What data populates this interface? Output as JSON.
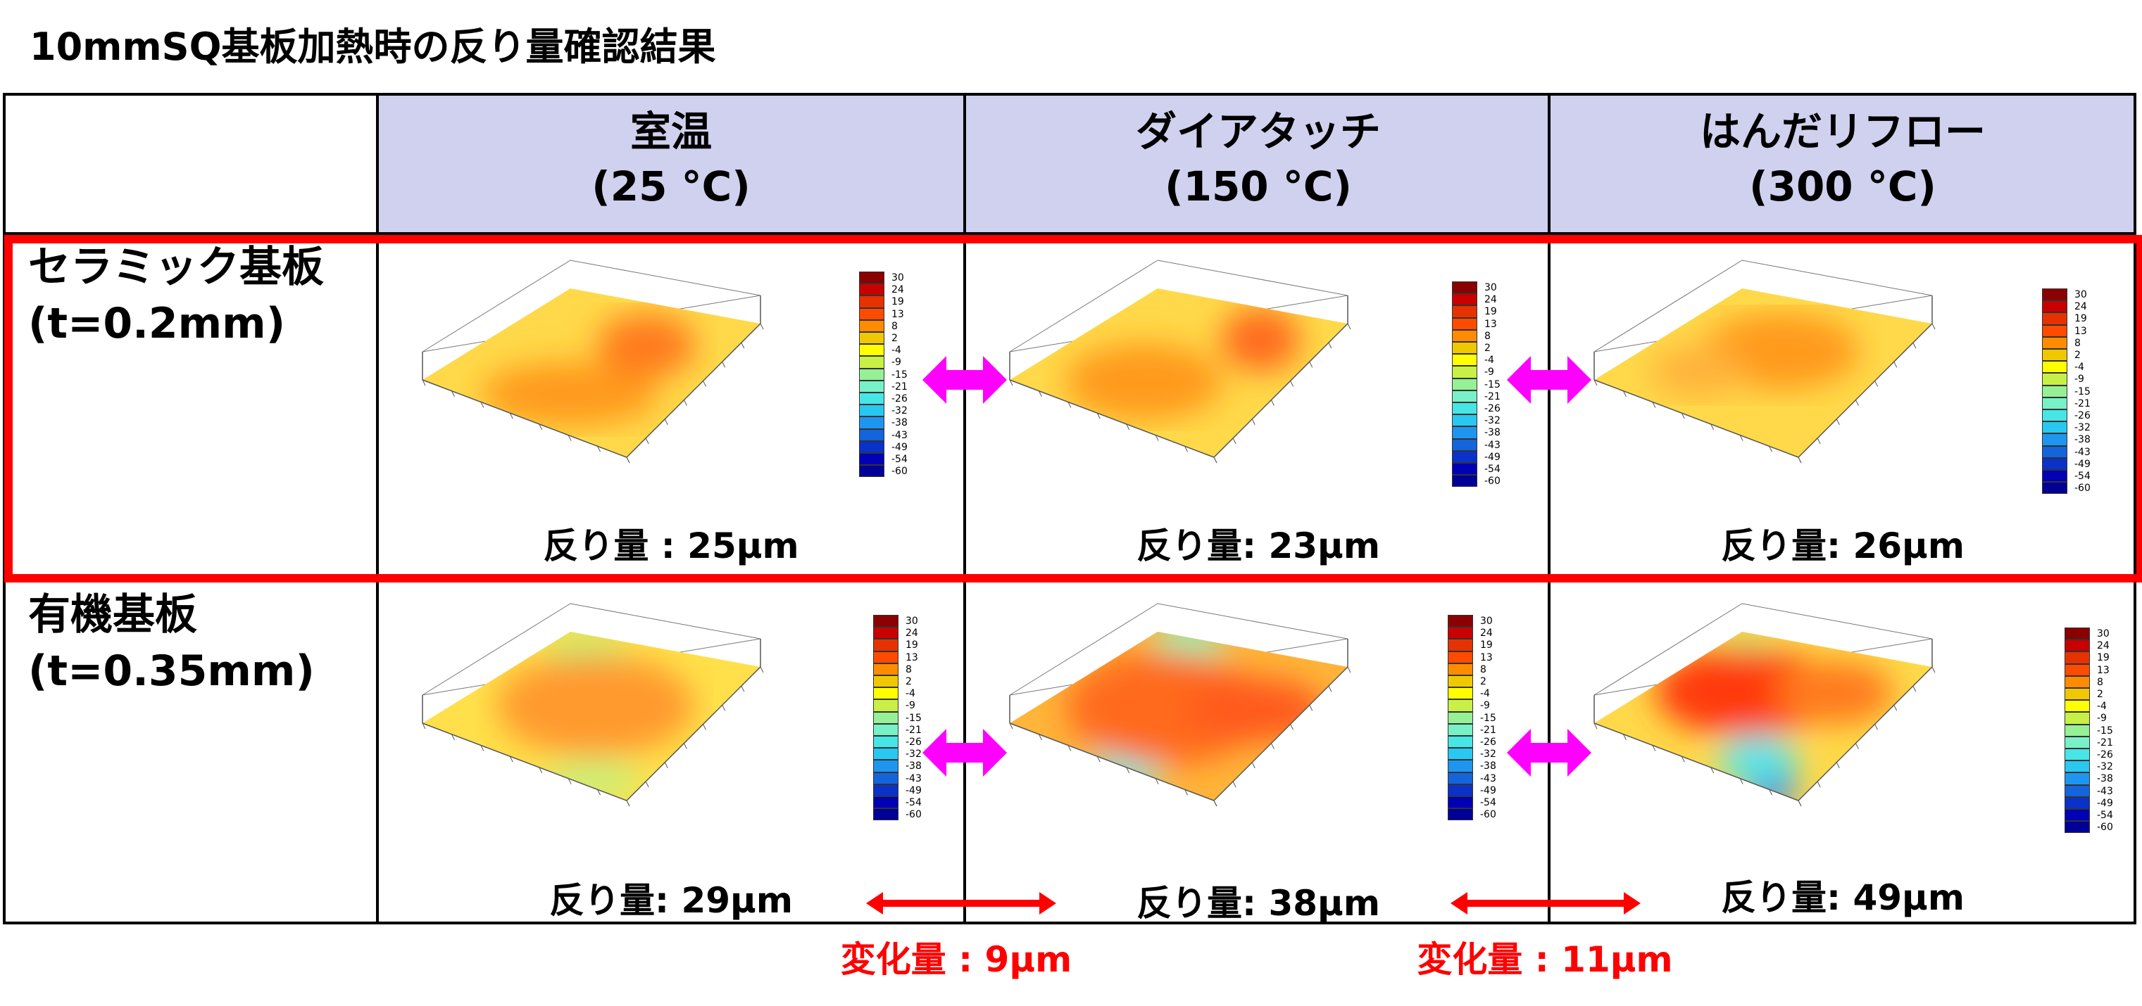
{
  "title": "10mmSQ基板加熱時の反り量確認結果",
  "columns": [
    {
      "name": "室温",
      "temp": "(25 °C)"
    },
    {
      "name": "ダイアタッチ",
      "temp": "(150 °C)"
    },
    {
      "name": "はんだリフロー",
      "temp": "(300 °C)"
    }
  ],
  "rows": [
    {
      "name": "セラミック基板",
      "thickness": "(t=0.2mm)",
      "highlighted": true,
      "warpage": [
        "反り量 : 25μm",
        "反り量: 23μm",
        "反り量: 26μm"
      ]
    },
    {
      "name": "有機基板",
      "thickness": "(t=0.35mm)",
      "highlighted": false,
      "warpage": [
        "反り量: 29μm",
        "反り量: 38μm",
        "反り量: 49μm"
      ]
    }
  ],
  "changes": [
    "変化量 : 9μm",
    "変化量 : 11μm"
  ],
  "colorbar_ticks": [
    "30",
    "24",
    "19",
    "13",
    "8",
    "2",
    "-4",
    "-9",
    "-15",
    "-21",
    "-26",
    "-32",
    "-38",
    "-43",
    "-49",
    "-54",
    "-60"
  ],
  "colors": {
    "header_bg": "#cfd1ee",
    "highlight_border": "#ff0000",
    "compare_arrow": "#ff00ff",
    "change_arrow": "#ff0000",
    "change_text": "#ff0000"
  }
}
